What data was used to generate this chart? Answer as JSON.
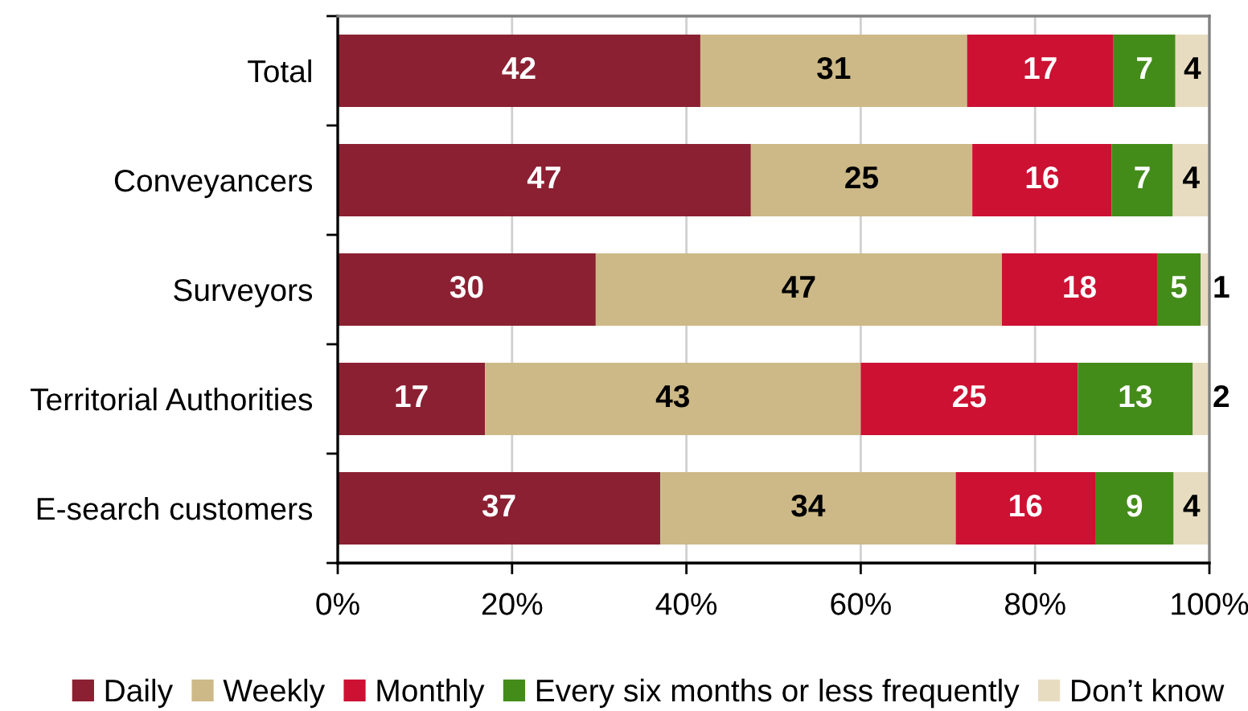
{
  "chart_data": {
    "type": "bar",
    "orientation": "horizontal",
    "stacked": true,
    "categories": [
      "Total",
      "Conveyancers",
      "Surveyors",
      "Territorial Authorities",
      "E-search customers"
    ],
    "series": [
      {
        "name": "Daily",
        "color": "#8b2032",
        "values": [
          41.6,
          47.4,
          29.6,
          16.9,
          37.0
        ],
        "value_labels": [
          "42",
          "47",
          "30",
          "17",
          "37"
        ]
      },
      {
        "name": "Weekly",
        "color": "#cdb987",
        "values": [
          30.6,
          25.4,
          46.6,
          43.1,
          33.9
        ],
        "value_labels": [
          "31",
          "25",
          "47",
          "43",
          "34"
        ]
      },
      {
        "name": "Monthly",
        "color": "#cc1133",
        "values": [
          16.8,
          16.0,
          17.8,
          24.9,
          16.0
        ],
        "value_labels": [
          "17",
          "16",
          "18",
          "25",
          "16"
        ]
      },
      {
        "name": "Every six months or less frequently",
        "color": "#448c1a",
        "values": [
          7.1,
          7.0,
          5.0,
          13.2,
          9.0
        ],
        "value_labels": [
          "7",
          "7",
          "5",
          "13",
          "9"
        ]
      },
      {
        "name": "Don’t know",
        "color": "#e8dcc0",
        "values": [
          3.9,
          4.2,
          1.0,
          1.9,
          4.1
        ],
        "value_labels": [
          "4",
          "4",
          "1",
          "2",
          "4"
        ]
      }
    ],
    "xlim": [
      0,
      100
    ],
    "xticks": [
      {
        "value": 0,
        "label": "0%"
      },
      {
        "value": 20,
        "label": "20%"
      },
      {
        "value": 40,
        "label": "40%"
      },
      {
        "value": 60,
        "label": "60%"
      },
      {
        "value": 80,
        "label": "80%"
      },
      {
        "value": 100,
        "label": "100%"
      }
    ],
    "grid": "x",
    "legend": "bottom"
  }
}
